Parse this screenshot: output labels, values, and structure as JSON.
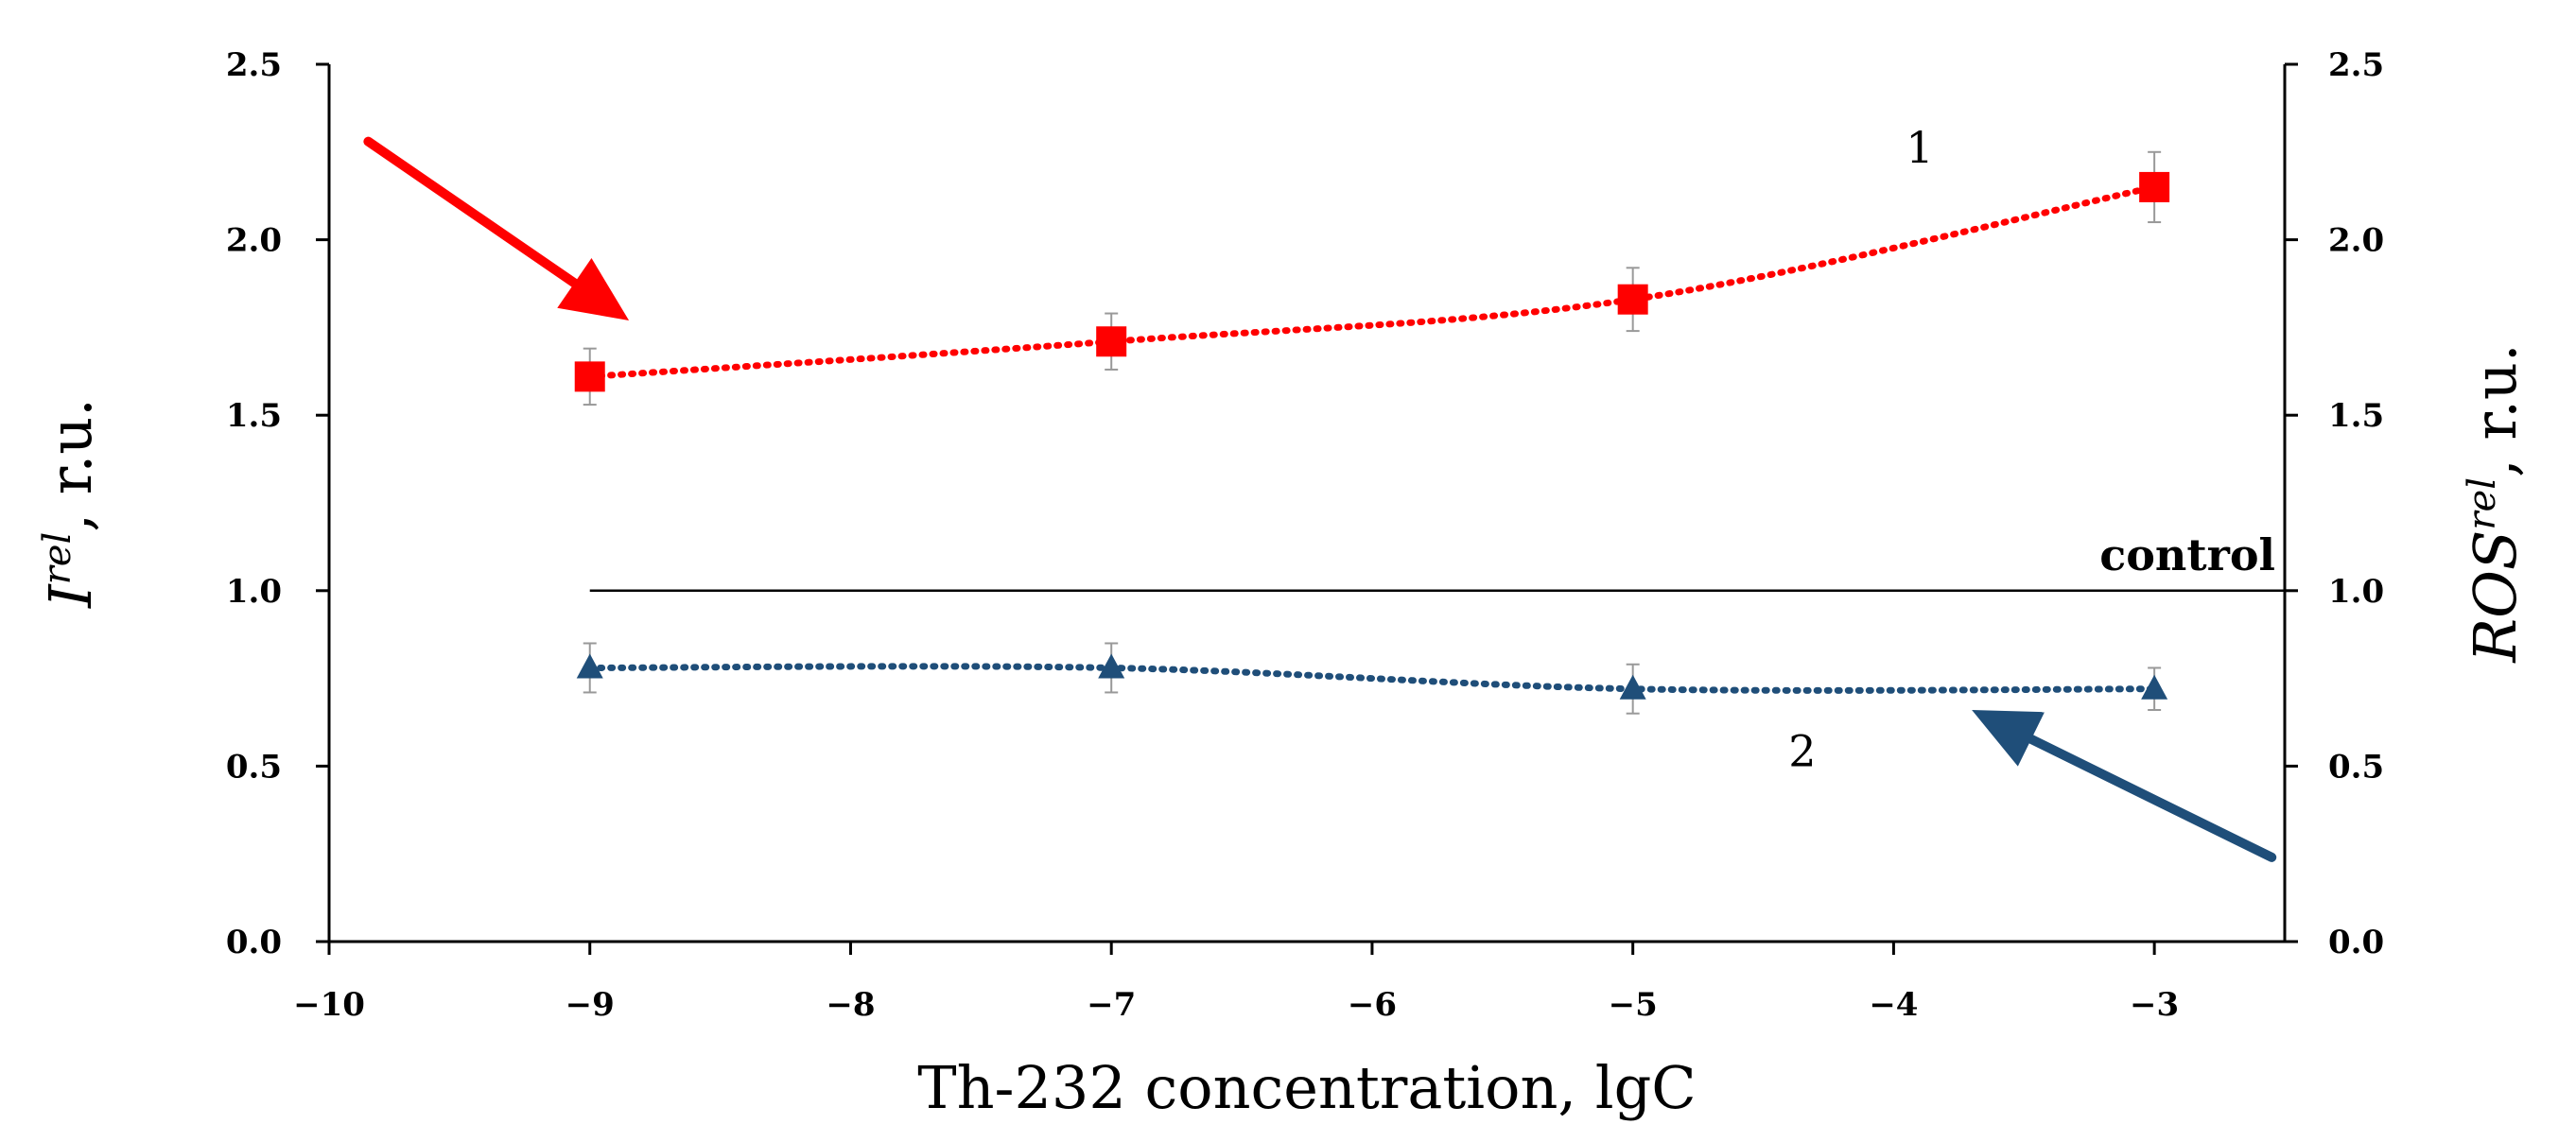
{
  "chart_data": {
    "type": "line",
    "xlabel": "Th-232 concentration, lgC",
    "ylabel_left": {
      "main": "I",
      "sup": "rel",
      "rest": ", r.u."
    },
    "ylabel_right": {
      "main": "ROS",
      "sup": "rel",
      "rest": ", r.u."
    },
    "xlim": [
      -10,
      -2.5
    ],
    "ylim": [
      0,
      2.5
    ],
    "x_ticks": [
      -10,
      -9,
      -8,
      -7,
      -6,
      -5,
      -4,
      -3
    ],
    "x_tick_labels": [
      "−10",
      "−9",
      "−8",
      "−7",
      "−6",
      "−5",
      "−4",
      "−3"
    ],
    "y_ticks": [
      0,
      0.5,
      1.0,
      1.5,
      2.0,
      2.5
    ],
    "y_tick_labels": [
      "0.0",
      "0.5",
      "1.0",
      "1.5",
      "2.0",
      "2.5"
    ],
    "series": [
      {
        "name": "1",
        "axis": "right",
        "color": "#ff0000",
        "marker": "square",
        "x": [
          -9,
          -7,
          -5,
          -3
        ],
        "values": [
          1.61,
          1.71,
          1.83,
          2.15
        ],
        "errors": [
          0.08,
          0.08,
          0.09,
          0.1
        ]
      },
      {
        "name": "2",
        "axis": "left",
        "color": "#1f4e79",
        "marker": "triangle",
        "x": [
          -9,
          -7,
          -5,
          -3
        ],
        "values": [
          0.78,
          0.78,
          0.72,
          0.72
        ],
        "errors": [
          0.07,
          0.07,
          0.07,
          0.06
        ]
      }
    ],
    "control": {
      "label": "control",
      "value": 1.0,
      "x_range": [
        -9,
        -2.5
      ]
    },
    "annotations": [
      {
        "text": "1",
        "x": -3.9,
        "y": 2.22
      },
      {
        "text": "2",
        "x": -4.35,
        "y": 0.5
      }
    ],
    "arrows": [
      {
        "color": "#ff0000",
        "from": [
          -9.85,
          2.28
        ],
        "to": [
          -8.85,
          1.77
        ]
      },
      {
        "color": "#1f4e79",
        "from": [
          -2.55,
          0.24
        ],
        "to": [
          -3.7,
          0.66
        ]
      }
    ]
  }
}
